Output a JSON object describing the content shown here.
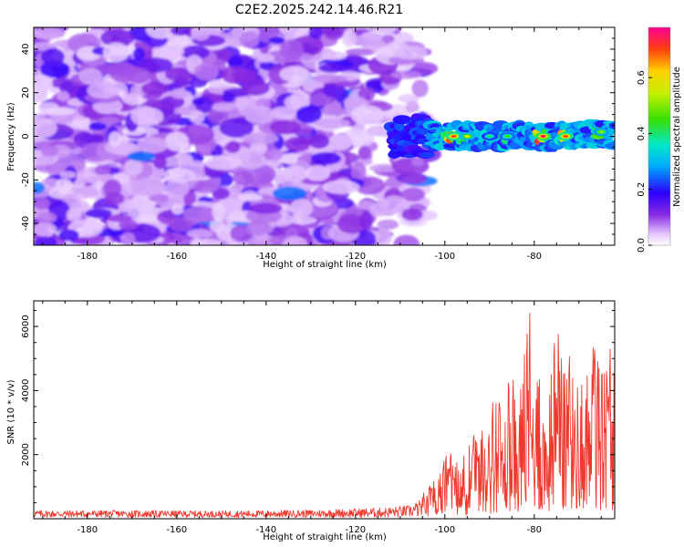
{
  "title": "C2E2.2025.242.14.46.R21",
  "colors": {
    "snr_line": "#ee3a2e",
    "axis": "#000000",
    "background": "#ffffff"
  },
  "chart_data": [
    {
      "type": "heatmap",
      "name": "spectrogram",
      "xlabel": "Height of straight line (km)",
      "ylabel": "Frequency (Hz)",
      "xlim": [
        -192,
        -62
      ],
      "ylim": [
        -50,
        50
      ],
      "xticks": [
        -180,
        -160,
        -140,
        -120,
        -100,
        -80
      ],
      "yticks": [
        -40,
        -20,
        0,
        20,
        40
      ],
      "grid": false,
      "description_of_values": "Broadband purple noise (low amplitude) for heights below about -105 km; narrow band centered near 0 Hz from about -112 km upward with amplitude peaks reaching ~0.75 near -100, -78 and -73 km",
      "band_center_hz": 0,
      "band_start_km": -112,
      "noise_end_km": -105,
      "peaks": [
        {
          "x": -98,
          "y": 0,
          "value": 0.7
        },
        {
          "x": -95,
          "y": 0,
          "value": 0.55
        },
        {
          "x": -90,
          "y": 0,
          "value": 0.4
        },
        {
          "x": -86,
          "y": 0,
          "value": 0.45
        },
        {
          "x": -78,
          "y": 0,
          "value": 0.75
        },
        {
          "x": -73,
          "y": 0,
          "value": 0.7
        },
        {
          "x": -65,
          "y": 2,
          "value": 0.5
        }
      ]
    },
    {
      "type": "colorbar",
      "name": "amplitude-colorbar",
      "label": "Normalized spectral amplitude",
      "range": [
        0,
        0.78
      ],
      "ticks": [
        "0.0",
        "0.2",
        "0.4",
        "0.6"
      ],
      "tick_values": [
        0,
        0.2,
        0.4,
        0.6
      ]
    },
    {
      "type": "line",
      "name": "snr",
      "xlabel": "Height of straight line (km)",
      "ylabel": "SNR (10 * v/v)",
      "xlim": [
        -192,
        -62
      ],
      "ylim": [
        0,
        6800
      ],
      "xticks": [
        -180,
        -160,
        -140,
        -120,
        -100,
        -80
      ],
      "yticks": [
        2000,
        4000,
        6000
      ],
      "grid": false,
      "series": [
        {
          "name": "SNR",
          "envelope_km_vs_peak": [
            [
              -192,
              300
            ],
            [
              -170,
              300
            ],
            [
              -150,
              280
            ],
            [
              -130,
              320
            ],
            [
              -115,
              400
            ],
            [
              -108,
              500
            ],
            [
              -104,
              900
            ],
            [
              -101,
              1500
            ],
            [
              -99,
              2300
            ],
            [
              -97,
              1900
            ],
            [
              -95,
              2200
            ],
            [
              -92,
              3000
            ],
            [
              -90,
              2800
            ],
            [
              -89,
              4000
            ],
            [
              -87,
              3800
            ],
            [
              -85,
              4600
            ],
            [
              -83,
              4200
            ],
            [
              -81,
              6700
            ],
            [
              -79,
              4500
            ],
            [
              -77,
              4300
            ],
            [
              -75,
              6000
            ],
            [
              -73,
              5000
            ],
            [
              -71,
              5400
            ],
            [
              -69,
              4400
            ],
            [
              -67,
              5800
            ],
            [
              -65,
              5000
            ],
            [
              -63.5,
              6800
            ],
            [
              -62,
              4400
            ]
          ]
        }
      ]
    }
  ]
}
